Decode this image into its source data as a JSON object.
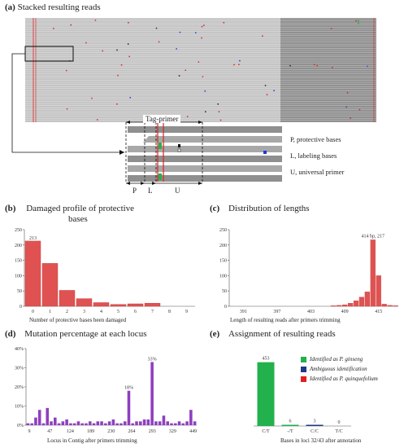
{
  "panel_a": {
    "letter": "(a)",
    "title": "Stacked resulting reads",
    "tag_primer_label": "Tag-primer",
    "legend": [
      "P, protective bases",
      "L, labeling bases",
      "U, universal primer"
    ],
    "segment_labels": [
      "P",
      "L",
      "U"
    ]
  },
  "panel_b": {
    "letter": "(b)",
    "title_line1": "Damaged profile of protective",
    "title_line2": "bases",
    "xlabel": "Number of protective bases been damaged",
    "bar_color": "#e05252"
  },
  "panel_c": {
    "letter": "(c)",
    "title": "Distribution of lengths",
    "xlabel": "Length of resulting reads after primers trimming",
    "peak_label": "414 bp, 217",
    "bar_color": "#e05252"
  },
  "panel_d": {
    "letter": "(d)",
    "title": "Mutation percentage at each locus",
    "xlabel": "Locus in Contig after primers trimming",
    "annot_18": "18%",
    "annot_33": "33%",
    "bar_color": "#8e3fbf"
  },
  "panel_e": {
    "letter": "(e)",
    "title": "Assignment of resulting reads",
    "xlabel": "Bases in loci 32/43 after annotation",
    "legend": [
      {
        "label": "Identified as P. ginseng",
        "color": "#22b14c"
      },
      {
        "label": "Ambiguous identification",
        "color": "#1f3a8a"
      },
      {
        "label": "Identified as P. quinquefolium",
        "color": "#e02020"
      }
    ]
  },
  "chart_data": [
    {
      "id": "b",
      "type": "bar",
      "categories": [
        "0",
        "1",
        "2",
        "3",
        "4",
        "5",
        "6",
        "7",
        "8",
        "9"
      ],
      "values": [
        213,
        140,
        52,
        25,
        12,
        6,
        8,
        10,
        0,
        0
      ],
      "data_labels": [
        "213",
        "",
        "",
        "",
        "",
        "",
        "",
        "",
        "",
        ""
      ],
      "ylim": [
        0,
        250
      ],
      "yticks": [
        0,
        50,
        100,
        150,
        200,
        250
      ],
      "xlabel": "Number of protective bases been damaged"
    },
    {
      "id": "c",
      "type": "bar",
      "x_start": 389,
      "x_end": 419,
      "x_ticks": [
        391,
        397,
        403,
        409,
        415
      ],
      "x": [
        407,
        408,
        409,
        410,
        411,
        412,
        413,
        414,
        415,
        416,
        417,
        418
      ],
      "values": [
        2,
        3,
        5,
        10,
        18,
        30,
        47,
        217,
        100,
        7,
        3,
        2
      ],
      "ylim": [
        0,
        250
      ],
      "yticks": [
        0,
        50,
        100,
        150,
        200,
        250
      ],
      "xlabel": "Length of resulting reads after primers trimming"
    },
    {
      "id": "d",
      "type": "bar",
      "tick_labels": [
        "9",
        "47",
        "124",
        "189",
        "230",
        "264",
        "293",
        "329",
        "449"
      ],
      "values": [
        1,
        1,
        4,
        8,
        1,
        9,
        2,
        4,
        1,
        2,
        3,
        1,
        1,
        2,
        1,
        1,
        2,
        1,
        2,
        2,
        1,
        2,
        3,
        1,
        1,
        2,
        18,
        1,
        2,
        2,
        3,
        3,
        33,
        2,
        2,
        5,
        2,
        1,
        1,
        2,
        1,
        2,
        8,
        2
      ],
      "ylim": [
        0,
        40
      ],
      "yticks": [
        "0%",
        "10%",
        "20%",
        "30%",
        "40%"
      ],
      "xlabel": "Locus in Contig after primers trimming"
    },
    {
      "id": "e",
      "type": "bar",
      "categories": [
        "C/T",
        "-/T",
        "C/C",
        "T/C"
      ],
      "values": [
        453,
        6,
        3,
        0
      ],
      "data_labels": [
        "453",
        "6",
        "3",
        "0"
      ],
      "colors": [
        "#22b14c",
        "#22b14c",
        "#1f3a8a",
        "#e02020"
      ],
      "ylim": [
        0,
        480
      ],
      "xlabel": "Bases in loci 32/43 after annotation"
    }
  ]
}
